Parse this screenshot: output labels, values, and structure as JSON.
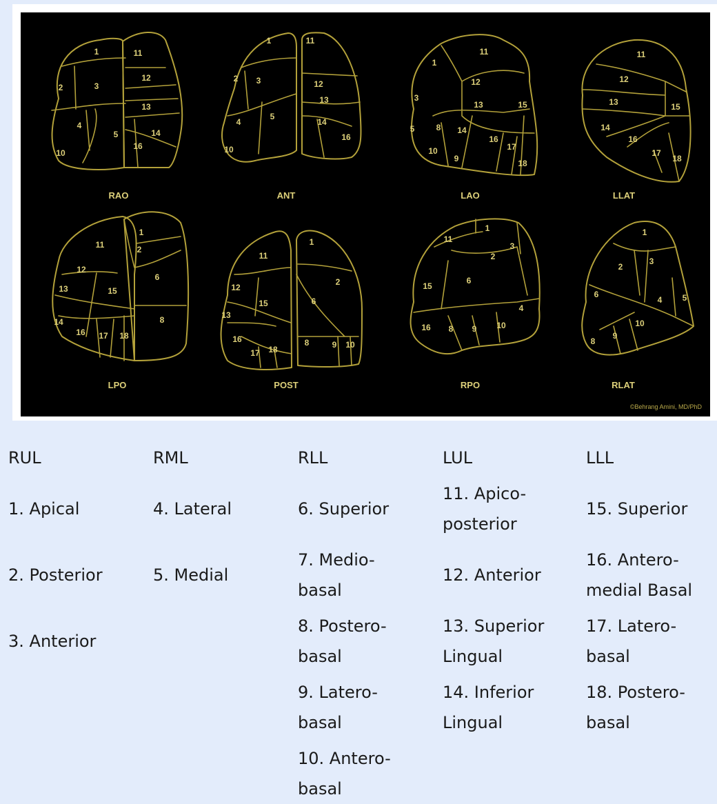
{
  "figure": {
    "views": [
      {
        "label": "RAO"
      },
      {
        "label": "ANT"
      },
      {
        "label": "LAO"
      },
      {
        "label": "LLAT"
      },
      {
        "label": "LPO"
      },
      {
        "label": "POST"
      },
      {
        "label": "RPO"
      },
      {
        "label": "RLAT"
      }
    ],
    "credit": "©Behrang Amini, MD/PhD",
    "line_color": "#b3a13a",
    "text_color": "#ddd07a",
    "numbers": {
      "RAO": [
        "1",
        "11",
        "2",
        "3",
        "12",
        "13",
        "4",
        "5",
        "14",
        "16",
        "10"
      ],
      "ANT": [
        "1",
        "11",
        "2",
        "3",
        "12",
        "13",
        "4",
        "5",
        "14",
        "16",
        "10"
      ],
      "LAO": [
        "1",
        "11",
        "12",
        "3",
        "13",
        "15",
        "5",
        "8",
        "14",
        "16",
        "17",
        "10",
        "9",
        "18"
      ],
      "LLAT": [
        "11",
        "12",
        "13",
        "15",
        "14",
        "16",
        "17",
        "18"
      ],
      "LPO": [
        "1",
        "11",
        "2",
        "12",
        "6",
        "13",
        "15",
        "14",
        "16",
        "17",
        "18",
        "8"
      ],
      "POST": [
        "1",
        "11",
        "2",
        "12",
        "15",
        "6",
        "13",
        "16",
        "17",
        "18",
        "8",
        "9",
        "10"
      ],
      "RPO": [
        "1",
        "11",
        "3",
        "2",
        "15",
        "6",
        "4",
        "16",
        "8",
        "9",
        "10"
      ],
      "RLAT": [
        "1",
        "2",
        "3",
        "6",
        "4",
        "5",
        "10",
        "8",
        "9"
      ]
    }
  },
  "legend": {
    "columns": [
      {
        "header": "RUL",
        "items": [
          "1. Apical",
          "2. Posterior",
          "3. Anterior"
        ]
      },
      {
        "header": "RML",
        "items": [
          "4. Lateral",
          "5. Medial"
        ]
      },
      {
        "header": "RLL",
        "items": [
          "6. Superior",
          "7. Medio-basal",
          "8. Postero-basal",
          "9. Latero-basal",
          "10. Antero-basal"
        ]
      },
      {
        "header": "LUL",
        "items": [
          "11. Apico-posterior",
          "12. Anterior",
          "13. Superior Lingual",
          "14. Inferior Lingual"
        ]
      },
      {
        "header": "LLL",
        "items": [
          "15. Superior",
          "16. Antero-medial Basal",
          "17. Latero-basal",
          "18. Postero-basal"
        ]
      }
    ],
    "lines": {
      "RUL": [
        [
          "1. Apical"
        ],
        [
          "2. Posterior"
        ],
        [
          "3. Anterior"
        ]
      ],
      "RML": [
        [
          "4. Lateral"
        ],
        [
          "5. Medial"
        ]
      ],
      "RLL": [
        [
          "6. Superior"
        ],
        [
          "7. Medio-",
          "basal"
        ],
        [
          "8. Postero-",
          "basal"
        ],
        [
          "9. Latero-",
          "basal"
        ],
        [
          "10. Antero-",
          "basal"
        ]
      ],
      "LUL": [
        [
          "11. Apico-",
          "posterior"
        ],
        [
          "12. Anterior"
        ],
        [
          "13. Superior",
          "Lingual"
        ],
        [
          "14. Inferior",
          "Lingual"
        ]
      ],
      "LLL": [
        [
          "15. Superior"
        ],
        [
          "16. Antero-",
          "medial Basal"
        ],
        [
          "17. Latero-",
          "basal"
        ],
        [
          "18. Postero-",
          "basal"
        ]
      ]
    }
  }
}
